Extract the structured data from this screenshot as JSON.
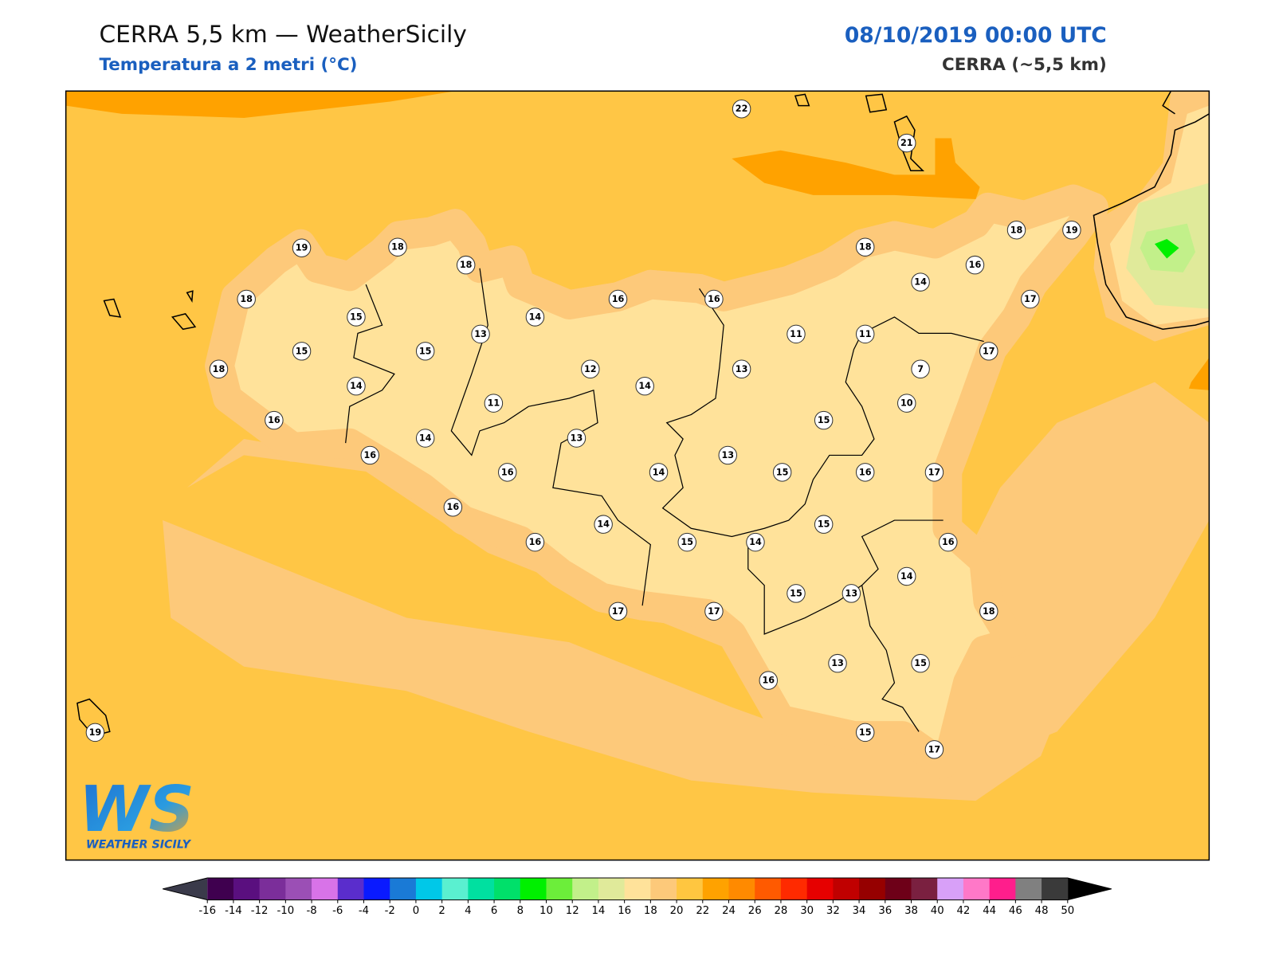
{
  "header": {
    "title": "CERRA 5,5 km — WeatherSicily",
    "subtitle": "Temperatura a 2 metri (°C)",
    "date": "08/10/2019 00:00 UTC",
    "model": "CERRA (~5,5 km)"
  },
  "logo": {
    "mark": "WS",
    "name": "WEATHER SICILY"
  },
  "stations": [
    22,
    21,
    19,
    18,
    18,
    18,
    19,
    18,
    16,
    14,
    18,
    15,
    13,
    14,
    16,
    16,
    17,
    11,
    11,
    15,
    15,
    18,
    17,
    12,
    13,
    7,
    14,
    14,
    11,
    10,
    16,
    15,
    14,
    13,
    16,
    13,
    16,
    14,
    15,
    16,
    17,
    16,
    14,
    15,
    16,
    15,
    14,
    16,
    14,
    15,
    13,
    17,
    17,
    18,
    13,
    15,
    16,
    19,
    15,
    17
  ],
  "colorbar": {
    "ticks": [
      -16,
      -14,
      -12,
      -10,
      -8,
      -6,
      -4,
      -2,
      0,
      2,
      4,
      6,
      8,
      10,
      12,
      14,
      16,
      18,
      20,
      22,
      24,
      26,
      28,
      30,
      32,
      34,
      36,
      38,
      40,
      42,
      44,
      46,
      48,
      50
    ],
    "colors": [
      "#3f004f",
      "#5a0f7f",
      "#7b2e9a",
      "#9b4fb5",
      "#d873e8",
      "#5a2dcc",
      "#0a1aff",
      "#1a7ad6",
      "#00c8e8",
      "#5af0d0",
      "#00e0a0",
      "#00e06a",
      "#00f000",
      "#6cee3a",
      "#c2f08a",
      "#e0ea9a",
      "#ffe29a",
      "#fdc97a",
      "#ffc640",
      "#ffa200",
      "#ff8a00",
      "#ff5a00",
      "#ff2a00",
      "#e60000",
      "#c00000",
      "#960000",
      "#6e0018",
      "#7a2040",
      "#d8a0f8",
      "#ff78c8",
      "#ff1e8c",
      "#808080",
      "#3a3a3a"
    ],
    "under_color": "#3a3a4a",
    "over_color": "#000000"
  }
}
